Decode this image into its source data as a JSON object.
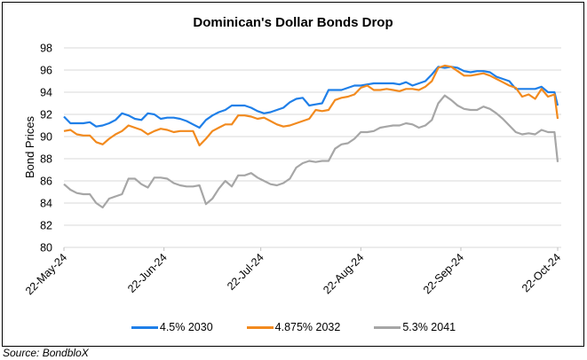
{
  "chart_data": {
    "type": "line",
    "title": "Dominican's Dollar Bonds Drop",
    "xlabel": "",
    "ylabel": "Bond Prices",
    "ylim": [
      80,
      98
    ],
    "yticks": [
      80,
      82,
      84,
      86,
      88,
      90,
      92,
      94,
      96,
      98
    ],
    "xlim_days": [
      0,
      153
    ],
    "xticks": [
      {
        "label": "22-May-24",
        "day": 0
      },
      {
        "label": "22-Jun-24",
        "day": 31
      },
      {
        "label": "22-Jul-24",
        "day": 61
      },
      {
        "label": "22-Aug-24",
        "day": 92
      },
      {
        "label": "22-Sep-24",
        "day": 123
      },
      {
        "label": "22-Oct-24",
        "day": 153
      }
    ],
    "grid": true,
    "legend_position": "bottom",
    "x_days": [
      0,
      2,
      4,
      6,
      8,
      10,
      12,
      14,
      16,
      18,
      20,
      22,
      24,
      26,
      28,
      30,
      32,
      34,
      36,
      38,
      40,
      42,
      44,
      46,
      48,
      50,
      52,
      54,
      56,
      58,
      60,
      62,
      64,
      66,
      68,
      70,
      72,
      74,
      76,
      78,
      80,
      82,
      84,
      86,
      88,
      90,
      92,
      94,
      96,
      98,
      100,
      102,
      104,
      106,
      108,
      110,
      112,
      114,
      116,
      118,
      120,
      122,
      124,
      126,
      128,
      130,
      132,
      134,
      136,
      138,
      140,
      142,
      144,
      146,
      148,
      150,
      152,
      153
    ],
    "series": [
      {
        "name": "4.5% 2030",
        "color": "#1f7fe8",
        "values": [
          91.8,
          91.2,
          91.2,
          91.2,
          91.3,
          90.9,
          91.0,
          91.2,
          91.5,
          92.1,
          91.9,
          91.6,
          91.5,
          92.1,
          92.0,
          91.6,
          91.7,
          91.7,
          91.6,
          91.4,
          91.1,
          90.8,
          91.5,
          91.9,
          92.2,
          92.4,
          92.8,
          92.8,
          92.8,
          92.6,
          92.3,
          92.1,
          92.2,
          92.4,
          92.6,
          93.1,
          93.4,
          93.5,
          92.8,
          92.9,
          93.0,
          94.2,
          94.2,
          94.2,
          94.4,
          94.6,
          94.6,
          94.7,
          94.8,
          94.8,
          94.8,
          94.8,
          94.7,
          94.9,
          94.6,
          94.8,
          95.0,
          95.6,
          96.3,
          96.2,
          96.3,
          96.2,
          95.9,
          95.8,
          95.9,
          95.9,
          95.8,
          95.4,
          95.2,
          95.0,
          94.3,
          94.3,
          94.3,
          94.3,
          94.5,
          94.0,
          94.0,
          92.8
        ]
      },
      {
        "name": "4.875% 2032",
        "color": "#f28a1e",
        "values": [
          90.5,
          90.6,
          90.2,
          90.1,
          90.1,
          89.5,
          89.3,
          89.8,
          90.2,
          90.5,
          91.0,
          90.8,
          90.6,
          90.2,
          90.5,
          90.7,
          90.6,
          90.4,
          90.5,
          90.5,
          90.5,
          89.2,
          89.8,
          90.5,
          90.8,
          91.1,
          91.1,
          91.9,
          91.9,
          91.8,
          91.6,
          91.7,
          91.4,
          91.1,
          90.9,
          91.0,
          91.2,
          91.4,
          91.6,
          92.4,
          92.3,
          92.4,
          93.3,
          93.5,
          93.6,
          93.8,
          94.4,
          94.6,
          94.2,
          94.2,
          94.3,
          94.2,
          94.1,
          94.3,
          94.3,
          94.2,
          94.5,
          95.0,
          96.2,
          96.4,
          96.3,
          95.9,
          95.5,
          95.5,
          95.6,
          95.7,
          95.5,
          95.2,
          94.9,
          94.6,
          94.4,
          93.6,
          93.8,
          93.4,
          94.3,
          93.6,
          93.8,
          91.6
        ]
      },
      {
        "name": "5.3% 2041",
        "color": "#a6a6a6",
        "values": [
          85.7,
          85.2,
          84.9,
          84.8,
          84.8,
          84.0,
          83.6,
          84.4,
          84.6,
          84.8,
          86.2,
          86.2,
          85.7,
          85.4,
          86.3,
          86.3,
          86.2,
          85.8,
          85.6,
          85.5,
          85.5,
          85.6,
          83.9,
          84.4,
          85.3,
          86.0,
          85.5,
          86.5,
          86.5,
          86.7,
          86.3,
          86.0,
          85.7,
          85.6,
          85.8,
          86.2,
          87.2,
          87.6,
          87.8,
          87.7,
          87.8,
          87.8,
          88.9,
          89.3,
          89.4,
          89.8,
          90.4,
          90.4,
          90.5,
          90.8,
          90.9,
          91.0,
          91.0,
          91.2,
          91.1,
          90.8,
          91.0,
          91.5,
          93.0,
          93.7,
          93.3,
          92.8,
          92.5,
          92.4,
          92.4,
          92.7,
          92.5,
          92.1,
          91.6,
          91.0,
          90.4,
          90.2,
          90.3,
          90.2,
          90.6,
          90.4,
          90.4,
          87.7
        ]
      }
    ]
  },
  "source": "Source: BondbloX"
}
